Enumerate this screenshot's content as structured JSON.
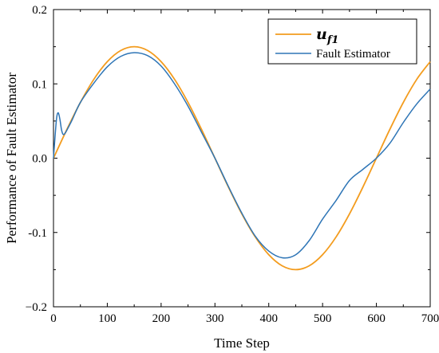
{
  "chart_data": {
    "type": "line",
    "xlabel": "Time Step",
    "ylabel": "Performance of Fault Estimator",
    "xlim": [
      0,
      700
    ],
    "ylim": [
      -0.2,
      0.2
    ],
    "xticks": [
      0,
      100,
      200,
      300,
      400,
      500,
      600,
      700
    ],
    "yticks": [
      -0.2,
      -0.1,
      0.0,
      0.1,
      0.2
    ],
    "xtick_labels": [
      "0",
      "100",
      "200",
      "300",
      "400",
      "500",
      "600",
      "700"
    ],
    "ytick_labels": [
      "−0.2",
      "-0.1",
      "0.0",
      "0.1",
      "0.2"
    ],
    "grid": false,
    "legend_position": "top-right",
    "series": [
      {
        "name": "u_f1",
        "legend_main": "u",
        "legend_sub": "f1",
        "color": "#F39C1E",
        "x": [
          0,
          25,
          50,
          75,
          100,
          125,
          150,
          175,
          200,
          225,
          250,
          275,
          300,
          325,
          350,
          375,
          400,
          425,
          450,
          475,
          500,
          525,
          550,
          575,
          600,
          625,
          650,
          675,
          700
        ],
        "y": [
          0.0,
          0.0388,
          0.075,
          0.1061,
          0.1299,
          0.1449,
          0.15,
          0.1449,
          0.1299,
          0.1061,
          0.075,
          0.0388,
          0.0,
          -0.0388,
          -0.075,
          -0.1061,
          -0.1299,
          -0.1449,
          -0.15,
          -0.1449,
          -0.1299,
          -0.1061,
          -0.075,
          -0.0388,
          0.0,
          0.0388,
          0.075,
          0.1061,
          0.1299
        ]
      },
      {
        "name": "Fault Estimator",
        "color": "#2E75B6",
        "x": [
          0,
          3,
          6,
          9,
          12,
          15,
          18,
          22,
          28,
          35,
          50,
          75,
          100,
          125,
          150,
          175,
          200,
          225,
          250,
          275,
          300,
          325,
          350,
          375,
          400,
          425,
          450,
          475,
          500,
          525,
          550,
          575,
          600,
          625,
          650,
          675,
          700
        ],
        "y": [
          0.0,
          0.03,
          0.055,
          0.061,
          0.052,
          0.038,
          0.032,
          0.034,
          0.042,
          0.052,
          0.075,
          0.101,
          0.123,
          0.137,
          0.142,
          0.138,
          0.124,
          0.1,
          0.07,
          0.035,
          0.0,
          -0.038,
          -0.074,
          -0.105,
          -0.125,
          -0.134,
          -0.13,
          -0.111,
          -0.082,
          -0.057,
          -0.03,
          -0.015,
          0.0,
          0.02,
          0.048,
          0.073,
          0.093
        ]
      }
    ]
  }
}
